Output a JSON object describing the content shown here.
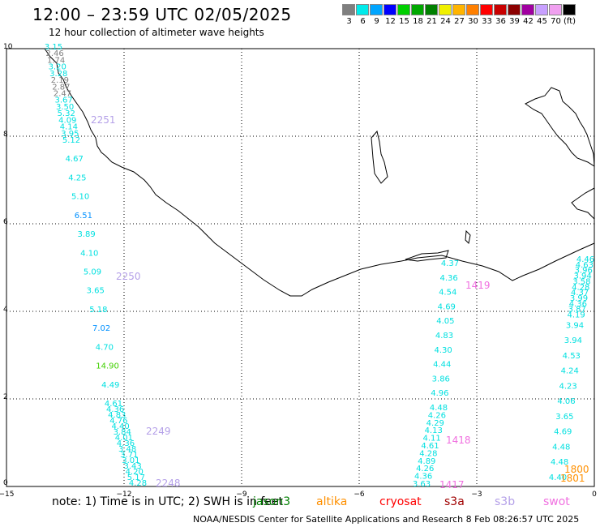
{
  "header": {
    "title": "12:00 – 23:59 UTC 02/05/2025",
    "subtitle": "12 hour collection of altimeter wave heights"
  },
  "legend": {
    "colors": [
      "#7f7f7f",
      "#00eaea",
      "#00a5ff",
      "#0000ff",
      "#00d000",
      "#00a800",
      "#008000",
      "#f0f000",
      "#ffb400",
      "#ff7f00",
      "#ff0000",
      "#c80000",
      "#8b0000",
      "#a000a0",
      "#c8a0ff",
      "#f0a0f0",
      "#000000"
    ],
    "labels": [
      "3",
      "6",
      "9",
      "12",
      "15",
      "18",
      "21",
      "24",
      "27",
      "30",
      "33",
      "36",
      "39",
      "42",
      "45",
      "70",
      "(ft)"
    ]
  },
  "axes": {
    "x_ticks": [
      "−15",
      "−12",
      "−9",
      "−6",
      "−3",
      "0"
    ],
    "y_ticks": [
      "0",
      "2",
      "4",
      "6",
      "8",
      "10"
    ]
  },
  "tracks": [
    {
      "color": "#00e0e0",
      "labels": [
        "3.15",
        "2.46",
        "1.74",
        "3.20",
        "3.28",
        "2.19",
        "2.87",
        "2.47",
        "3.67",
        "3.50",
        "5.32",
        "4.09",
        "4.14",
        "3.95",
        "5.12",
        "4.67",
        "4.25",
        "5.10",
        "6.51",
        "3.89",
        "4.10",
        "5.09",
        "3.65",
        "5.18",
        "7.02",
        "4.70",
        "14.90",
        "4.49",
        "4.61",
        "4.36",
        "4.83",
        "4.76",
        "4.40",
        "3.84",
        "4.01",
        "4.36",
        "3.48",
        "3.71",
        "3.01",
        "3.43",
        "4.20",
        "5.17",
        "4.28"
      ]
    },
    {
      "color": "#00e0e0",
      "labels": [
        "4.37",
        "4.36",
        "4.54",
        "4.69",
        "4.05",
        "4.83",
        "4.30",
        "4.44",
        "3.86",
        "4.96",
        "4.48",
        "4.26",
        "4.29",
        "4.13",
        "4.11",
        "4.61",
        "4.28",
        "4.89",
        "4.26",
        "4.36",
        "3.63"
      ]
    },
    {
      "color": "#00e0e0",
      "labels": [
        "4.46",
        "4.63",
        "3.96",
        "3.94",
        "3.58",
        "4.28",
        "4.37",
        "3.99",
        "4.36",
        "3.87",
        "4.19",
        "3.94",
        "3.94",
        "4.53",
        "4.24",
        "4.23",
        "4.06",
        "3.65",
        "4.69",
        "4.48",
        "4.48",
        "4.40"
      ]
    }
  ],
  "pass_labels": [
    {
      "text": "2251",
      "color": "#b4a0e8"
    },
    {
      "text": "2250",
      "color": "#b4a0e8"
    },
    {
      "text": "2249",
      "color": "#b4a0e8"
    },
    {
      "text": "2248",
      "color": "#b4a0e8"
    },
    {
      "text": "1419",
      "color": "#f070e0"
    },
    {
      "text": "1418",
      "color": "#f070e0"
    },
    {
      "text": "1417",
      "color": "#f070e0"
    },
    {
      "text": "1800",
      "color": "#ff9000"
    },
    {
      "text": "1801",
      "color": "#ff9000"
    }
  ],
  "footer": {
    "note": "note:  1) Time is in UTC;  2) SWH is in feet",
    "satellites": [
      {
        "name": "jason3",
        "color": "#008000"
      },
      {
        "name": "altika",
        "color": "#ff9000"
      },
      {
        "name": "cryosat",
        "color": "#ff0000"
      },
      {
        "name": "s3a",
        "color": "#a00000"
      },
      {
        "name": "s3b",
        "color": "#b4a0e8"
      },
      {
        "name": "swot",
        "color": "#f070e0"
      }
    ],
    "credit": "NOAA/NESDIS Center for Satellite Applications and Research     8 Feb 08:26:57 UTC 2025"
  }
}
